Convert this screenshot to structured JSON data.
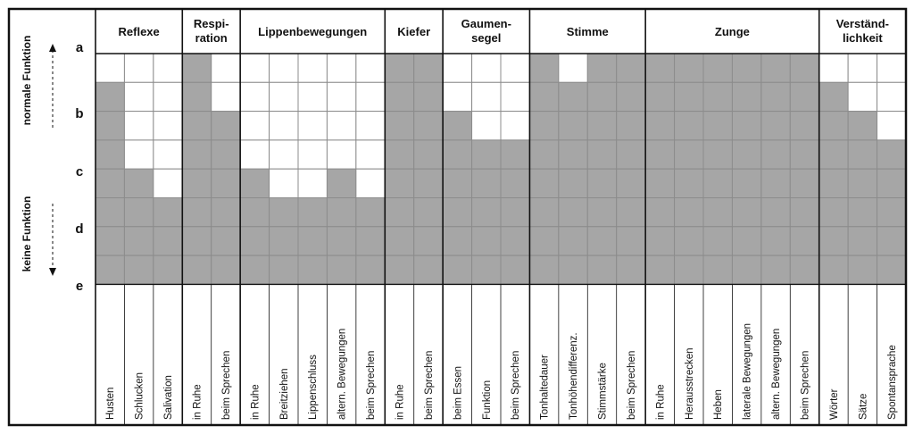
{
  "chart_data": {
    "type": "heatmap",
    "y_axis": {
      "top_label": "normale Funktion",
      "bottom_label": "keine Funktion",
      "levels": [
        "a",
        "b",
        "c",
        "d",
        "e"
      ]
    },
    "groups": [
      {
        "name": [
          "Reflexe"
        ],
        "columns": [
          "Husten",
          "Schlucken",
          "Salivation"
        ],
        "grey_from": [
          1,
          4,
          5
        ]
      },
      {
        "name": [
          "Respi-",
          "ration"
        ],
        "columns": [
          "in Ruhe",
          "beim Sprechen"
        ],
        "grey_from": [
          0,
          2
        ]
      },
      {
        "name": [
          "Lippenbewegungen"
        ],
        "columns": [
          "in Ruhe",
          "Breitziehen",
          "Lippenschluss",
          "altern. Bewegungen",
          "beim Sprechen"
        ],
        "grey_from": [
          4,
          5,
          5,
          4,
          5
        ]
      },
      {
        "name": [
          "Kiefer"
        ],
        "columns": [
          "in Ruhe",
          "beim Sprechen"
        ],
        "grey_from": [
          0,
          0
        ]
      },
      {
        "name": [
          "Gaumen-",
          "segel"
        ],
        "columns": [
          "beim Essen",
          "Funktion",
          "beim Sprechen"
        ],
        "grey_from": [
          2,
          3,
          3
        ]
      },
      {
        "name": [
          "Stimme"
        ],
        "columns": [
          "Tonhaltedauer",
          "Tonhöhendifferenz.",
          "Stimmstärke",
          "beim Sprechen"
        ],
        "grey_from": [
          0,
          1,
          0,
          0
        ]
      },
      {
        "name": [
          "Zunge"
        ],
        "columns": [
          "in Ruhe",
          "Herausstrecken",
          "Heben",
          "laterale Bewegungen",
          "altern. Bewegungen",
          "beim Sprechen"
        ],
        "grey_from": [
          0,
          0,
          0,
          0,
          0,
          0
        ]
      },
      {
        "name": [
          "Verständ-",
          "lichkeit"
        ],
        "columns": [
          "Wörter",
          "Sätze",
          "Spontansprache"
        ],
        "grey_from": [
          1,
          2,
          3
        ]
      }
    ],
    "colors": {
      "filled": "#a6a6a6",
      "empty": "#ffffff",
      "line": "#111111",
      "cell_border": "#8c8c8c"
    }
  }
}
